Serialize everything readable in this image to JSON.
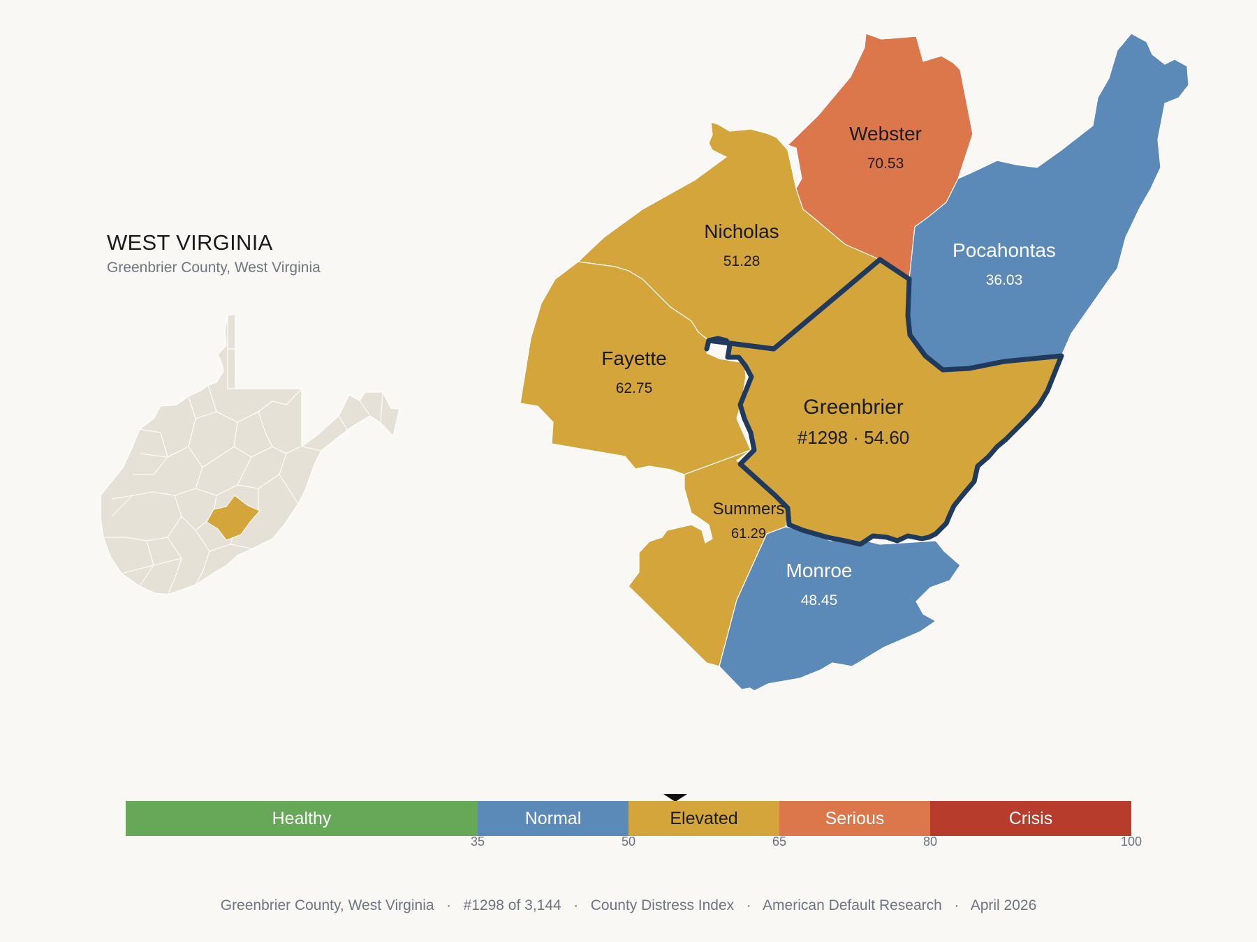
{
  "state": {
    "title": "WEST VIRGINIA",
    "subtitle": "Greenbrier County, West Virginia"
  },
  "counties": {
    "webster": {
      "name": "Webster",
      "value": "70.53",
      "fill": "#db774a",
      "text_color": "#1b1b1b"
    },
    "pocahontas": {
      "name": "Pocahontas",
      "value": "36.03",
      "fill": "#5b89b8",
      "text_color": "#ffffff"
    },
    "nicholas": {
      "name": "Nicholas",
      "value": "51.28",
      "fill": "#d4a53b",
      "text_color": "#1b1b1b"
    },
    "fayette": {
      "name": "Fayette",
      "value": "62.75",
      "fill": "#d4a53b",
      "text_color": "#1b1b1b"
    },
    "greenbrier": {
      "name": "Greenbrier",
      "value": "#1298 · 54.60",
      "fill": "#d4a53b",
      "text_color": "#1b1b1b",
      "outline": "#1f3a5c"
    },
    "summers": {
      "name": "Summers",
      "value": "61.29",
      "fill": "#d4a53b",
      "text_color": "#1b1b1b"
    },
    "monroe": {
      "name": "Monroe",
      "value": "48.45",
      "fill": "#5b89b8",
      "text_color": "#ffffff"
    }
  },
  "inset": {
    "base_fill": "#e6e1d6",
    "highlight_fill": "#d4a53b"
  },
  "legend": {
    "segments": [
      {
        "label": "Healthy",
        "color": "#67a758",
        "text_color": "#ffffff",
        "from": 0,
        "to": 35
      },
      {
        "label": "Normal",
        "color": "#5b89b8",
        "text_color": "#ffffff",
        "from": 35,
        "to": 50
      },
      {
        "label": "Elevated",
        "color": "#d4a53b",
        "text_color": "#1b1b1b",
        "from": 50,
        "to": 65
      },
      {
        "label": "Serious",
        "color": "#db774a",
        "text_color": "#ffffff",
        "from": 65,
        "to": 80
      },
      {
        "label": "Crisis",
        "color": "#b83c2b",
        "text_color": "#ffffff",
        "from": 80,
        "to": 100
      }
    ],
    "ticks": [
      "35",
      "50",
      "65",
      "80",
      "100"
    ],
    "marker_value": 54.6
  },
  "footer": {
    "county": "Greenbrier County, West Virginia",
    "rank": "#1298 of 3,144",
    "index": "County Distress Index",
    "source": "American Default Research",
    "date": "April 2026",
    "separator": "·"
  }
}
